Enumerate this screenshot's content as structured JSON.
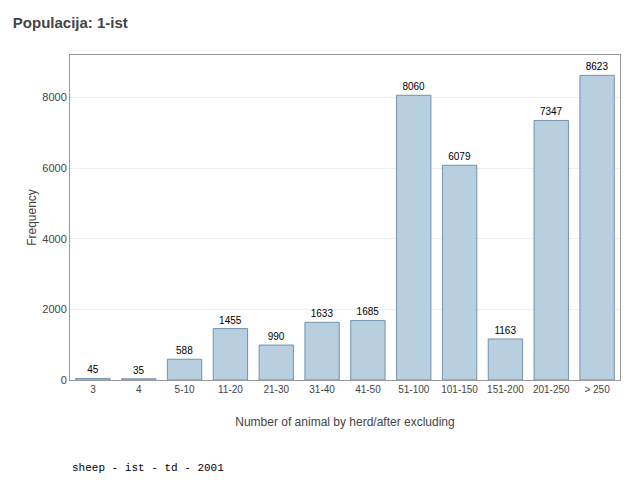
{
  "chart_data": {
    "type": "bar",
    "title": "Populacija: 1-ist",
    "xlabel": "Number of animal by herd/after excluding",
    "ylabel": "Frequency",
    "annotations": [
      "sheep - ist - td - 2001"
    ],
    "categories": [
      "3",
      "4",
      "5-10",
      "11-20",
      "21-30",
      "31-40",
      "41-50",
      "51-100",
      "101-150",
      "151-200",
      "201-250",
      "> 250"
    ],
    "values": [
      45,
      35,
      588,
      1455,
      990,
      1633,
      1685,
      8060,
      6079,
      1163,
      7347,
      8623
    ],
    "color": "#b8cfe0",
    "ylim": [
      0,
      9200
    ],
    "yticks": [
      0,
      2000,
      4000,
      6000,
      8000
    ],
    "grid": true,
    "data_labels": true
  }
}
